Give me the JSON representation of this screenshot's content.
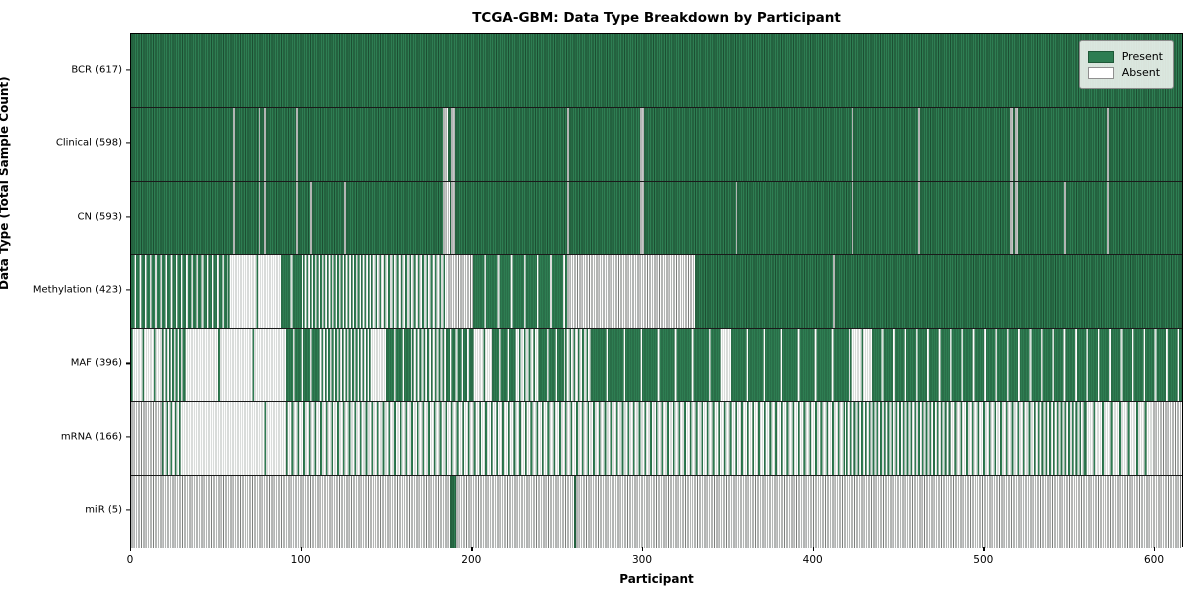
{
  "chart_data": {
    "type": "heatmap",
    "title": "TCGA-GBM: Data Type Breakdown by Participant",
    "xlabel": "Participant",
    "ylabel": "Data Type (Total Sample Count)",
    "x_ticks": [
      0,
      100,
      200,
      300,
      400,
      500,
      600
    ],
    "x_max": 617,
    "n_participants": 617,
    "legend": [
      {
        "label": "Present",
        "color": "#2e7d52"
      },
      {
        "label": "Absent",
        "color": "#ffffff"
      }
    ],
    "colors": {
      "present_fill": "#2e7d52",
      "present_edge": "#1e5837",
      "absent_fill": "#fdfdfd",
      "absent_edge": "#8f8f8f",
      "grid_line": "#1a1a1a"
    },
    "rows": [
      {
        "label": "BCR (617)",
        "data_type": "BCR",
        "present_count": 617,
        "runs": [
          [
            1,
            617
          ]
        ]
      },
      {
        "label": "Clinical (598)",
        "data_type": "Clinical",
        "present_count": 598,
        "runs": [
          [
            1,
            60
          ],
          [
            0,
            1
          ],
          [
            1,
            14
          ],
          [
            0,
            1
          ],
          [
            1,
            2
          ],
          [
            0,
            1
          ],
          [
            1,
            18
          ],
          [
            0,
            1
          ],
          [
            1,
            85
          ],
          [
            0,
            3
          ],
          [
            1,
            2
          ],
          [
            0,
            2
          ],
          [
            1,
            66
          ],
          [
            0,
            1
          ],
          [
            1,
            42
          ],
          [
            0,
            2
          ],
          [
            1,
            122
          ],
          [
            0,
            1
          ],
          [
            1,
            38
          ],
          [
            0,
            1
          ],
          [
            1,
            53
          ],
          [
            0,
            2
          ],
          [
            1,
            1
          ],
          [
            0,
            2
          ],
          [
            1,
            52
          ],
          [
            0,
            1
          ],
          [
            1,
            43
          ]
        ]
      },
      {
        "label": "CN (593)",
        "data_type": "CN",
        "present_count": 593,
        "runs": [
          [
            1,
            60
          ],
          [
            0,
            1
          ],
          [
            1,
            14
          ],
          [
            0,
            1
          ],
          [
            1,
            2
          ],
          [
            0,
            1
          ],
          [
            1,
            18
          ],
          [
            0,
            1
          ],
          [
            1,
            7
          ],
          [
            0,
            1
          ],
          [
            1,
            19
          ],
          [
            0,
            1
          ],
          [
            1,
            57
          ],
          [
            0,
            4
          ],
          [
            1,
            1
          ],
          [
            0,
            2
          ],
          [
            1,
            66
          ],
          [
            0,
            1
          ],
          [
            1,
            42
          ],
          [
            0,
            2
          ],
          [
            1,
            54
          ],
          [
            0,
            1
          ],
          [
            1,
            67
          ],
          [
            0,
            1
          ],
          [
            1,
            38
          ],
          [
            0,
            1
          ],
          [
            1,
            53
          ],
          [
            0,
            2
          ],
          [
            1,
            1
          ],
          [
            0,
            2
          ],
          [
            1,
            27
          ],
          [
            0,
            1
          ],
          [
            1,
            24
          ],
          [
            0,
            1
          ],
          [
            1,
            43
          ]
        ]
      },
      {
        "label": "Methylation (423)",
        "data_type": "Methylation",
        "present_count": 423,
        "runs": [
          [
            0.67,
            57
          ],
          [
            0.06,
            31
          ],
          [
            0.85,
            13
          ],
          [
            0.5,
            40
          ],
          [
            0.4,
            45
          ],
          [
            0,
            15
          ],
          [
            0.87,
            55
          ],
          [
            0,
            75
          ],
          [
            1,
            81
          ],
          [
            0,
            1
          ],
          [
            1,
            204
          ]
        ]
      },
      {
        "label": "MAF (396)",
        "data_type": "MAF",
        "present_count": 396,
        "runs": [
          [
            0.15,
            18
          ],
          [
            0.5,
            13
          ],
          [
            0.05,
            60
          ],
          [
            0.8,
            19
          ],
          [
            0.5,
            30
          ],
          [
            0.1,
            10
          ],
          [
            0.8,
            15
          ],
          [
            0.45,
            20
          ],
          [
            0.7,
            15
          ],
          [
            0.15,
            12
          ],
          [
            0.8,
            13
          ],
          [
            0.35,
            15
          ],
          [
            0.8,
            15
          ],
          [
            0.4,
            15
          ],
          [
            0.9,
            75
          ],
          [
            0.1,
            7
          ],
          [
            0.9,
            70
          ],
          [
            0.15,
            13
          ],
          [
            0.85,
            182
          ]
        ]
      },
      {
        "label": "mRNA (166)",
        "data_type": "mRNA",
        "present_count": 166,
        "runs": [
          [
            0,
            18
          ],
          [
            0.4,
            10
          ],
          [
            0.02,
            63
          ],
          [
            0.3,
            329
          ],
          [
            0.45,
            60
          ],
          [
            0.3,
            50
          ],
          [
            0.45,
            30
          ],
          [
            0.2,
            40
          ],
          [
            0,
            17
          ]
        ]
      },
      {
        "label": "miR (5)",
        "data_type": "miR",
        "present_count": 5,
        "runs": [
          [
            0,
            187
          ],
          [
            1,
            4
          ],
          [
            0,
            69
          ],
          [
            1,
            1
          ],
          [
            0,
            356
          ]
        ]
      }
    ]
  }
}
